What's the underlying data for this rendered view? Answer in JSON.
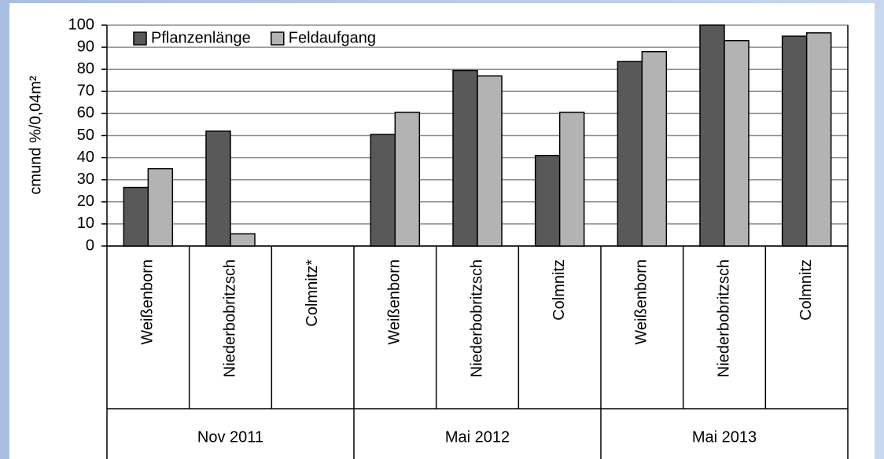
{
  "chart_data": {
    "type": "bar",
    "y_label": "cmund %/0,04m²",
    "categories": [
      "Weißenborn",
      "Niederbobritzsch",
      "Colmnitz*",
      "Weißenborn",
      "Niederbobritzsch",
      "Colmnitz",
      "Weißenborn",
      "Niederbobritzsch",
      "Colmnitz"
    ],
    "group_labels": [
      "Nov 2011",
      "Mai 2012",
      "Mai 2013"
    ],
    "series": [
      {
        "name": "Pflanzenlänge",
        "color": "#595959",
        "values": [
          26.5,
          52,
          null,
          50.5,
          79.5,
          41,
          83.5,
          100,
          95
        ]
      },
      {
        "name": "Feldaufgang",
        "color": "#b3b3b3",
        "values": [
          35,
          5.5,
          null,
          60.5,
          77,
          60.5,
          88,
          93,
          96.5
        ]
      }
    ],
    "ylim": [
      0,
      100
    ],
    "yticks": [
      0,
      10,
      20,
      30,
      40,
      50,
      60,
      70,
      80,
      90,
      100
    ],
    "grid": true,
    "legend": "top-left"
  }
}
